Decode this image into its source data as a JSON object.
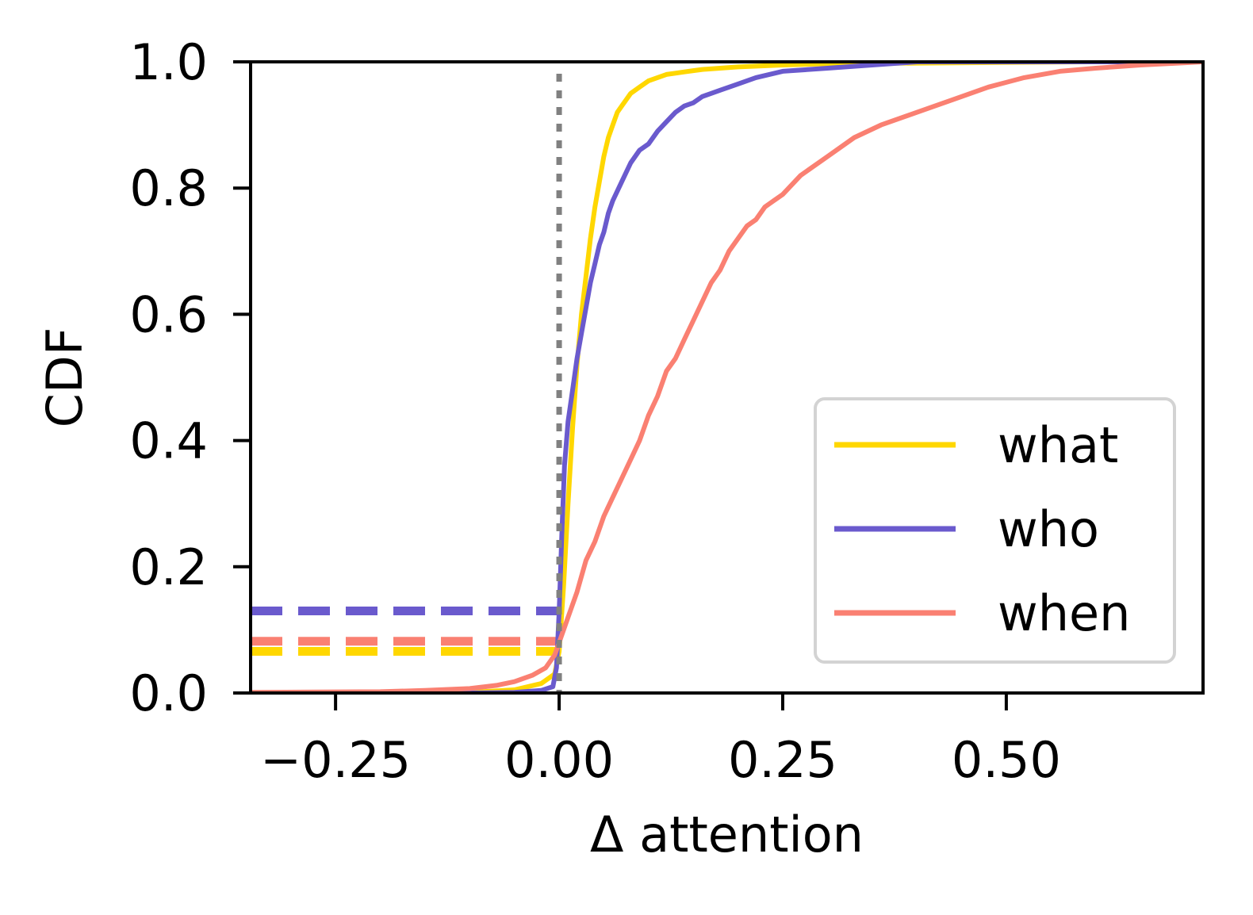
{
  "chart_data": {
    "type": "line",
    "title": "",
    "xlabel": "Δ attention",
    "ylabel": "CDF",
    "xlim": [
      -0.345,
      0.72
    ],
    "ylim": [
      0.0,
      1.0
    ],
    "x_ticks": [
      {
        "value": -0.25,
        "label": "−0.25"
      },
      {
        "value": 0.0,
        "label": "0.00"
      },
      {
        "value": 0.25,
        "label": "0.25"
      },
      {
        "value": 0.5,
        "label": "0.50"
      }
    ],
    "y_ticks": [
      {
        "value": 0.0,
        "label": "0.0"
      },
      {
        "value": 0.2,
        "label": "0.2"
      },
      {
        "value": 0.4,
        "label": "0.4"
      },
      {
        "value": 0.6,
        "label": "0.6"
      },
      {
        "value": 0.8,
        "label": "0.8"
      },
      {
        "value": 1.0,
        "label": "1.0"
      }
    ],
    "grid": false,
    "legend_position": "lower-right",
    "reference_line": {
      "orientation": "vertical",
      "x": 0.0,
      "style": "dotted",
      "color": "#808080"
    },
    "series": [
      {
        "name": "what",
        "color": "#FFD700",
        "x": [
          -0.345,
          -0.2,
          -0.1,
          -0.05,
          -0.02,
          -0.005,
          0.0,
          0.005,
          0.01,
          0.015,
          0.02,
          0.025,
          0.03,
          0.035,
          0.04,
          0.045,
          0.05,
          0.055,
          0.06,
          0.065,
          0.07,
          0.075,
          0.08,
          0.09,
          0.1,
          0.11,
          0.12,
          0.13,
          0.14,
          0.15,
          0.16,
          0.18,
          0.2,
          0.25,
          0.3,
          0.4,
          0.5,
          0.6,
          0.72
        ],
        "y": [
          0.0,
          0.0,
          0.001,
          0.005,
          0.015,
          0.03,
          0.066,
          0.17,
          0.3,
          0.42,
          0.52,
          0.6,
          0.66,
          0.72,
          0.77,
          0.81,
          0.85,
          0.88,
          0.9,
          0.92,
          0.93,
          0.94,
          0.95,
          0.96,
          0.97,
          0.975,
          0.98,
          0.982,
          0.984,
          0.986,
          0.988,
          0.99,
          0.992,
          0.995,
          0.997,
          0.998,
          0.999,
          1.0,
          1.0
        ],
        "dashed_level": 0.066
      },
      {
        "name": "who",
        "color": "#6A5ACD",
        "x": [
          -0.345,
          -0.1,
          -0.05,
          -0.02,
          -0.007,
          -0.003,
          0.0,
          0.003,
          0.006,
          0.01,
          0.015,
          0.02,
          0.025,
          0.03,
          0.035,
          0.04,
          0.045,
          0.05,
          0.055,
          0.06,
          0.07,
          0.08,
          0.09,
          0.1,
          0.11,
          0.12,
          0.13,
          0.14,
          0.15,
          0.16,
          0.17,
          0.18,
          0.2,
          0.22,
          0.25,
          0.3,
          0.35,
          0.4,
          0.72
        ],
        "y": [
          0.0,
          0.0,
          0.001,
          0.004,
          0.01,
          0.04,
          0.13,
          0.25,
          0.36,
          0.43,
          0.48,
          0.53,
          0.57,
          0.61,
          0.65,
          0.68,
          0.71,
          0.73,
          0.76,
          0.78,
          0.81,
          0.84,
          0.86,
          0.87,
          0.89,
          0.905,
          0.92,
          0.93,
          0.935,
          0.945,
          0.95,
          0.955,
          0.965,
          0.975,
          0.985,
          0.99,
          0.995,
          1.0,
          1.0
        ],
        "dashed_level": 0.13
      },
      {
        "name": "when",
        "color": "#FA8072",
        "x": [
          -0.345,
          -0.2,
          -0.15,
          -0.1,
          -0.07,
          -0.05,
          -0.03,
          -0.015,
          -0.005,
          0.0,
          0.005,
          0.01,
          0.02,
          0.03,
          0.04,
          0.05,
          0.06,
          0.07,
          0.08,
          0.09,
          0.1,
          0.11,
          0.12,
          0.13,
          0.14,
          0.15,
          0.16,
          0.17,
          0.18,
          0.19,
          0.2,
          0.21,
          0.22,
          0.23,
          0.24,
          0.25,
          0.27,
          0.3,
          0.33,
          0.36,
          0.4,
          0.44,
          0.48,
          0.52,
          0.56,
          0.6,
          0.65,
          0.72
        ],
        "y": [
          0.001,
          0.002,
          0.004,
          0.007,
          0.012,
          0.018,
          0.028,
          0.04,
          0.06,
          0.08,
          0.1,
          0.12,
          0.16,
          0.21,
          0.24,
          0.28,
          0.31,
          0.34,
          0.37,
          0.4,
          0.44,
          0.47,
          0.51,
          0.53,
          0.56,
          0.59,
          0.62,
          0.65,
          0.67,
          0.7,
          0.72,
          0.74,
          0.75,
          0.77,
          0.78,
          0.79,
          0.82,
          0.85,
          0.88,
          0.9,
          0.92,
          0.94,
          0.96,
          0.975,
          0.985,
          0.99,
          0.995,
          1.0
        ],
        "dashed_level": 0.082
      }
    ]
  }
}
